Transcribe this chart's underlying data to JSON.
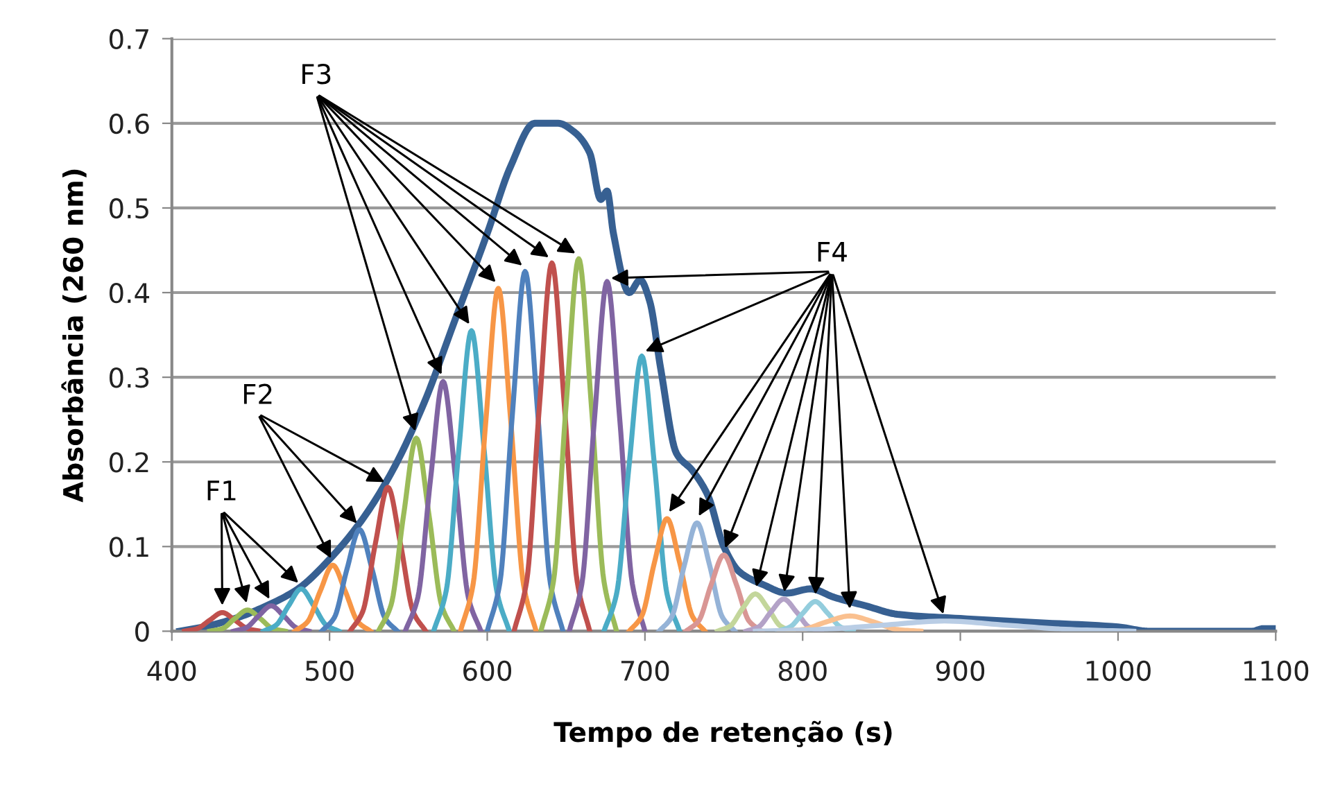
{
  "chart_data": {
    "type": "line",
    "annotations": [
      {
        "text": "F1",
        "x": 432,
        "y": 0.022
      },
      {
        "text": "F2",
        "x": 502,
        "y": 0.078
      },
      {
        "text": "F3",
        "x": 555,
        "y": 0.228
      },
      {
        "text": "F4",
        "x": 676,
        "y": 0.413
      }
    ],
    "xlabel": "Tempo de retenção (s)",
    "ylabel": "Absorbância (260 nm)",
    "xlim": [
      400,
      1100
    ],
    "xticks": [
      400,
      500,
      600,
      700,
      800,
      900,
      1000,
      1100
    ],
    "ylim": [
      0,
      0.7
    ],
    "yticks": [
      0,
      0.1,
      0.2,
      0.3,
      0.4,
      0.5,
      0.6,
      0.7
    ],
    "grid": "y",
    "legend": false,
    "marker": "none",
    "line_style": "solid",
    "series": [
      {
        "color": "#376092",
        "x": [
          405,
          420,
          440,
          460,
          480,
          500,
          520,
          540,
          560,
          580,
          600,
          615,
          630,
          645,
          655,
          665,
          672,
          676,
          680,
          690,
          697,
          703,
          710,
          720,
          730,
          740,
          750,
          760,
          775,
          790,
          805,
          820,
          840,
          860,
          900,
          950,
          1000,
          1020,
          1085,
          1092,
          1100
        ],
        "values": [
          0,
          0.005,
          0.015,
          0.03,
          0.05,
          0.085,
          0.13,
          0.19,
          0.27,
          0.37,
          0.47,
          0.55,
          0.6,
          0.6,
          0.59,
          0.565,
          0.51,
          0.52,
          0.47,
          0.4,
          0.415,
          0.39,
          0.31,
          0.21,
          0.19,
          0.16,
          0.1,
          0.07,
          0.055,
          0.045,
          0.05,
          0.04,
          0.03,
          0.02,
          0.015,
          0.01,
          0.005,
          0,
          0,
          0.003,
          0.003
        ]
      },
      {
        "color": "#c0504d",
        "x": [
          408,
          416,
          424,
          432,
          440,
          448,
          456
        ],
        "values": [
          0,
          0.003,
          0.013,
          0.022,
          0.013,
          0.003,
          0
        ]
      },
      {
        "color": "#9bbb59",
        "x": [
          424,
          432,
          440,
          448,
          456,
          464,
          472
        ],
        "values": [
          0,
          0.003,
          0.015,
          0.025,
          0.015,
          0.003,
          0
        ]
      },
      {
        "color": "#8064a2",
        "x": [
          439,
          447,
          455,
          463,
          471,
          479,
          487
        ],
        "values": [
          0,
          0.004,
          0.018,
          0.03,
          0.018,
          0.004,
          0
        ]
      },
      {
        "color": "#4bacc6",
        "x": [
          458,
          466,
          474,
          482,
          490,
          498,
          506
        ],
        "values": [
          0,
          0.007,
          0.03,
          0.05,
          0.03,
          0.007,
          0
        ]
      },
      {
        "color": "#f79646",
        "x": [
          478,
          486,
          494,
          502,
          510,
          518,
          526
        ],
        "values": [
          0,
          0.011,
          0.047,
          0.078,
          0.047,
          0.011,
          0
        ]
      },
      {
        "color": "#4f81bd",
        "x": [
          495,
          503,
          511,
          519,
          527,
          535,
          543
        ],
        "values": [
          0,
          0.016,
          0.073,
          0.12,
          0.073,
          0.016,
          0
        ]
      },
      {
        "color": "#c0504d",
        "x": [
          513,
          521,
          529,
          537,
          545,
          553,
          561
        ],
        "values": [
          0,
          0.023,
          0.103,
          0.17,
          0.103,
          0.023,
          0
        ]
      },
      {
        "color": "#9bbb59",
        "x": [
          531,
          539,
          547,
          555,
          563,
          571,
          579
        ],
        "values": [
          0,
          0.031,
          0.138,
          0.228,
          0.138,
          0.031,
          0
        ]
      },
      {
        "color": "#8064a2",
        "x": [
          548,
          556,
          564,
          572,
          580,
          588,
          596
        ],
        "values": [
          0,
          0.04,
          0.179,
          0.295,
          0.179,
          0.04,
          0
        ]
      },
      {
        "color": "#4bacc6",
        "x": [
          566,
          574,
          582,
          590,
          598,
          606,
          614
        ],
        "values": [
          0,
          0.048,
          0.215,
          0.355,
          0.215,
          0.048,
          0
        ]
      },
      {
        "color": "#f79646",
        "x": [
          583,
          591,
          599,
          607,
          615,
          623,
          631
        ],
        "values": [
          0,
          0.055,
          0.246,
          0.405,
          0.246,
          0.055,
          0
        ]
      },
      {
        "color": "#4f81bd",
        "x": [
          600,
          608,
          616,
          624,
          632,
          640,
          648
        ],
        "values": [
          0,
          0.057,
          0.258,
          0.425,
          0.258,
          0.057,
          0
        ]
      },
      {
        "color": "#c0504d",
        "x": [
          617,
          625,
          633,
          641,
          649,
          657,
          665
        ],
        "values": [
          0,
          0.059,
          0.264,
          0.435,
          0.264,
          0.059,
          0
        ]
      },
      {
        "color": "#9bbb59",
        "x": [
          634,
          642,
          650,
          658,
          666,
          674,
          682
        ],
        "values": [
          0,
          0.059,
          0.267,
          0.44,
          0.267,
          0.059,
          0
        ]
      },
      {
        "color": "#8064a2",
        "x": [
          652,
          660,
          668,
          676,
          684,
          692,
          700
        ],
        "values": [
          0,
          0.056,
          0.251,
          0.413,
          0.251,
          0.056,
          0
        ]
      },
      {
        "color": "#4bacc6",
        "x": [
          674,
          682,
          690,
          698,
          706,
          714,
          722
        ],
        "values": [
          0,
          0.044,
          0.197,
          0.325,
          0.197,
          0.044,
          0
        ]
      },
      {
        "color": "#f79646",
        "x": [
          690,
          698,
          706,
          714,
          722,
          730,
          738
        ],
        "values": [
          0,
          0.018,
          0.081,
          0.133,
          0.081,
          0.018,
          0
        ]
      },
      {
        "color": "#95b3d7",
        "x": [
          709,
          717,
          725,
          733,
          741,
          749,
          757
        ],
        "values": [
          0,
          0.017,
          0.078,
          0.128,
          0.078,
          0.017,
          0
        ]
      },
      {
        "color": "#d99694",
        "x": [
          726,
          734,
          742,
          750,
          758,
          766,
          774
        ],
        "values": [
          0,
          0.012,
          0.055,
          0.09,
          0.055,
          0.012,
          0
        ]
      },
      {
        "color": "#c3d69b",
        "x": [
          746,
          754,
          762,
          770,
          778,
          786,
          794
        ],
        "values": [
          0,
          0.006,
          0.027,
          0.044,
          0.027,
          0.006,
          0
        ]
      },
      {
        "color": "#b3a2c7",
        "x": [
          764,
          772,
          780,
          788,
          796,
          804,
          812
        ],
        "values": [
          0,
          0.005,
          0.023,
          0.038,
          0.023,
          0.005,
          0
        ]
      },
      {
        "color": "#93cddd",
        "x": [
          784,
          792,
          800,
          808,
          816,
          824,
          832
        ],
        "values": [
          0,
          0.005,
          0.021,
          0.035,
          0.021,
          0.005,
          0
        ]
      },
      {
        "color": "#fac08f",
        "x": [
          785,
          800,
          815,
          830,
          845,
          860,
          875
        ],
        "values": [
          0,
          0.002,
          0.011,
          0.018,
          0.011,
          0.002,
          0
        ]
      },
      {
        "color": "#b9cde5",
        "x": [
          770,
          810,
          850,
          890,
          930,
          970,
          1010
        ],
        "values": [
          0,
          0.002,
          0.007,
          0.012,
          0.007,
          0.002,
          0
        ]
      }
    ]
  }
}
